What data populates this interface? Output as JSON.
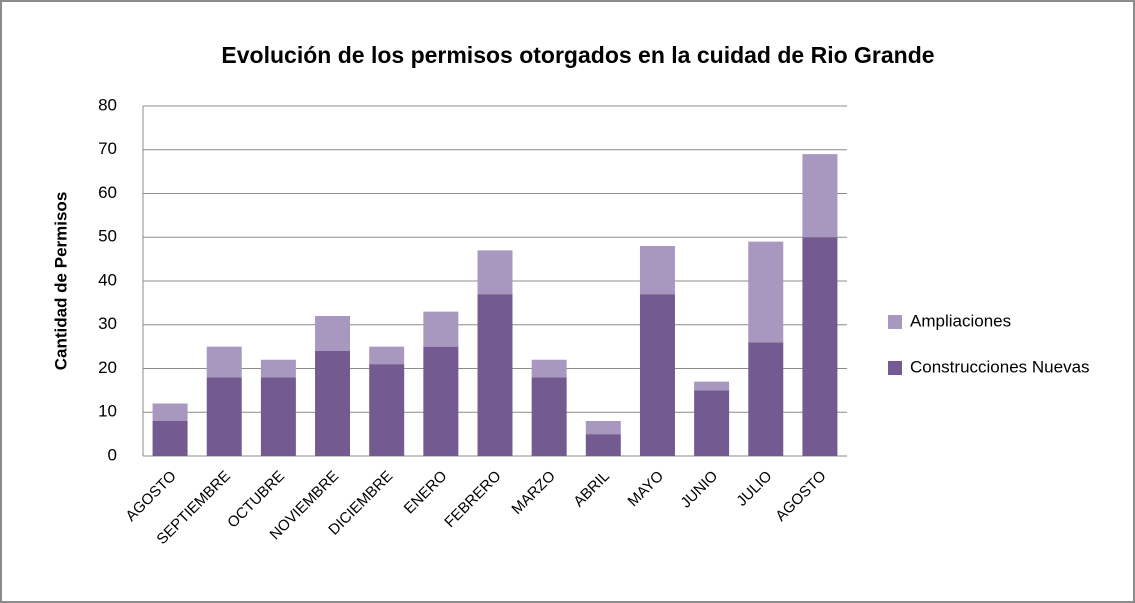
{
  "chart_data": {
    "type": "stacked_bar",
    "title": "Evolución de los permisos otorgados en la cuidad de Rio Grande",
    "y_label": "Cantidad de Permisos",
    "categories": [
      "AGOSTO",
      "SEPTIEMBRE",
      "OCTUBRE",
      "NOVIEMBRE",
      "DICIEMBRE",
      "ENERO",
      "FEBRERO",
      "MARZO",
      "ABRIL",
      "MAYO",
      "JUNIO",
      "JULIO",
      "AGOSTO"
    ],
    "series": [
      {
        "name": "Construcciones Nuevas",
        "color": "#735b91",
        "values": [
          8,
          18,
          18,
          24,
          21,
          25,
          37,
          18,
          5,
          37,
          15,
          26,
          50
        ]
      },
      {
        "name": "Ampliaciones",
        "color": "#a898c0",
        "values": [
          4,
          7,
          4,
          8,
          4,
          8,
          10,
          4,
          3,
          11,
          2,
          23,
          19
        ]
      }
    ],
    "ylim": [
      0,
      80
    ],
    "yticks": [
      0,
      10,
      20,
      30,
      40,
      50,
      60,
      70,
      80
    ],
    "grid": true,
    "legend": "right"
  }
}
